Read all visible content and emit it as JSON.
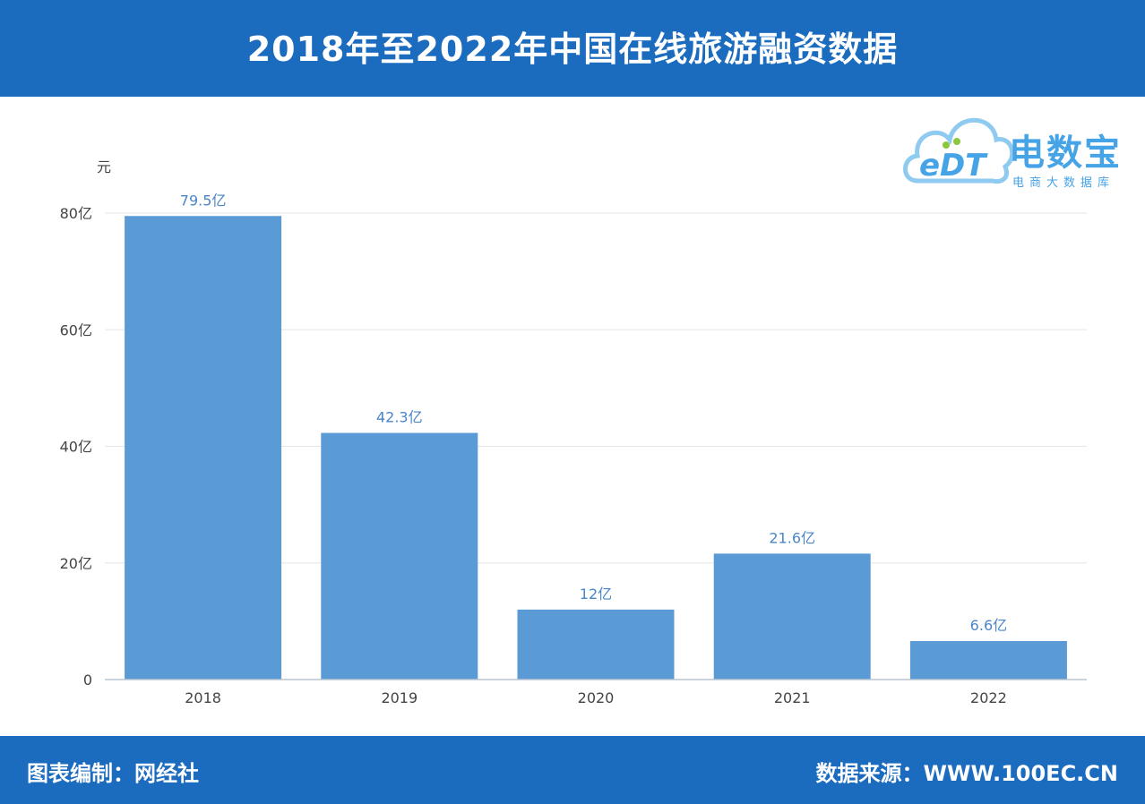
{
  "header": {
    "title": "2018年至2022年中国在线旅游融资数据"
  },
  "logo": {
    "mark": "eDT",
    "name": "电数宝",
    "subtitle": "电商大数据库"
  },
  "footer": {
    "credit": "图表编制：网经社",
    "source": "数据来源：WWW.100EC.CN"
  },
  "colors": {
    "brand": "#1b6bbf",
    "bar": "#5b9bd5",
    "label": "#4a86c8"
  },
  "chart_data": {
    "type": "bar",
    "categories": [
      "2018",
      "2019",
      "2020",
      "2021",
      "2022"
    ],
    "values": [
      79.5,
      42.3,
      12,
      21.6,
      6.6
    ],
    "data_labels": [
      "79.5亿",
      "42.3亿",
      "12亿",
      "21.6亿",
      "6.6亿"
    ],
    "ylabel": "元",
    "ylim": [
      0,
      80
    ],
    "yticks": [
      0,
      20,
      40,
      60,
      80
    ],
    "ytick_labels": [
      "0",
      "20亿",
      "40亿",
      "60亿",
      "80亿"
    ],
    "grid": true,
    "legend": "none"
  }
}
